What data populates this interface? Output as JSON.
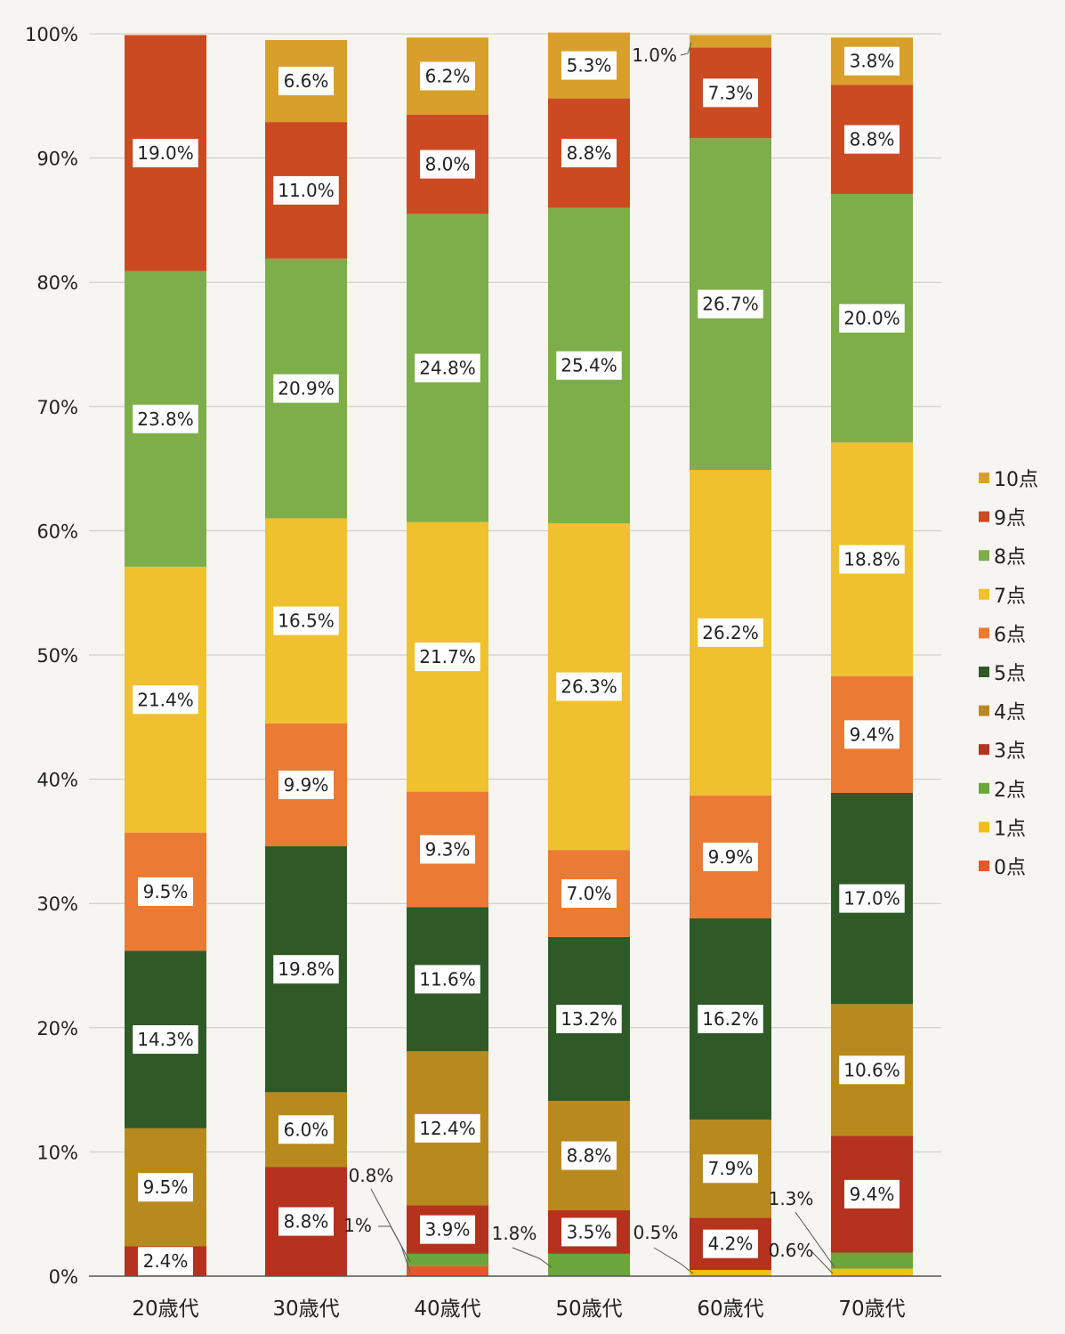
{
  "chart_data": {
    "type": "bar",
    "stacked": true,
    "orientation": "vertical",
    "categories": [
      "20歳代",
      "30歳代",
      "40歳代",
      "50歳代",
      "60歳代",
      "70歳代"
    ],
    "ylim": [
      0,
      100
    ],
    "yticks": [
      "0%",
      "10%",
      "20%",
      "30%",
      "40%",
      "50%",
      "60%",
      "70%",
      "80%",
      "90%",
      "100%"
    ],
    "grid": true,
    "legend_position": "right",
    "series": [
      {
        "name": "0点",
        "color": "#e8562a",
        "values": [
          0.0,
          0.0,
          0.8,
          0.0,
          0.0,
          0.0
        ]
      },
      {
        "name": "1点",
        "color": "#f2be1a",
        "values": [
          0.0,
          0.0,
          0.0,
          0.0,
          0.5,
          0.6
        ]
      },
      {
        "name": "2点",
        "color": "#6aa63a",
        "values": [
          0.0,
          0.0,
          1.0,
          1.8,
          0.0,
          1.3
        ]
      },
      {
        "name": "3点",
        "color": "#b5321e",
        "values": [
          2.4,
          8.8,
          3.9,
          3.5,
          4.2,
          9.4
        ]
      },
      {
        "name": "4点",
        "color": "#b88a1e",
        "values": [
          9.5,
          6.0,
          12.4,
          8.8,
          7.9,
          10.6
        ]
      },
      {
        "name": "5点",
        "color": "#2f5a28",
        "values": [
          14.3,
          19.8,
          11.6,
          13.2,
          16.2,
          17.0
        ]
      },
      {
        "name": "6点",
        "color": "#ea7a34",
        "values": [
          9.5,
          9.9,
          9.3,
          7.0,
          9.9,
          9.4
        ]
      },
      {
        "name": "7点",
        "color": "#f0c12e",
        "values": [
          21.4,
          16.5,
          21.7,
          26.3,
          26.2,
          18.8
        ]
      },
      {
        "name": "8点",
        "color": "#7eae4a",
        "values": [
          23.8,
          20.9,
          24.8,
          25.4,
          26.7,
          20.0
        ]
      },
      {
        "name": "9点",
        "color": "#cc4a22",
        "values": [
          19.0,
          11.0,
          8.0,
          8.8,
          7.3,
          8.8
        ]
      },
      {
        "name": "10点",
        "color": "#d8a02a",
        "values": [
          0.0,
          6.6,
          6.2,
          5.3,
          1.0,
          3.8
        ]
      }
    ],
    "data_labels": [
      [
        "",
        "",
        "",
        "2.4%",
        "9.5%",
        "14.3%",
        "9.5%",
        "21.4%",
        "23.8%",
        "19.0%",
        ""
      ],
      [
        "",
        "",
        "",
        "8.8%",
        "6.0%",
        "19.8%",
        "9.9%",
        "16.5%",
        "20.9%",
        "11.0%",
        "6.6%"
      ],
      [
        "0.8%",
        "",
        "1%",
        "3.9%",
        "12.4%",
        "11.6%",
        "9.3%",
        "21.7%",
        "24.8%",
        "8.0%",
        "6.2%"
      ],
      [
        "",
        "",
        "1.8%",
        "3.5%",
        "8.8%",
        "13.2%",
        "7.0%",
        "26.3%",
        "25.4%",
        "8.8%",
        "5.3%"
      ],
      [
        "",
        "0.5%",
        "",
        "4.2%",
        "7.9%",
        "16.2%",
        "9.9%",
        "26.2%",
        "26.7%",
        "7.3%",
        "1.0%"
      ],
      [
        "",
        "0.6%",
        "1.3%",
        "9.4%",
        "10.6%",
        "17.0%",
        "9.4%",
        "18.8%",
        "20.0%",
        "8.8%",
        "3.8%"
      ]
    ],
    "title": "",
    "xlabel": "",
    "ylabel": ""
  }
}
